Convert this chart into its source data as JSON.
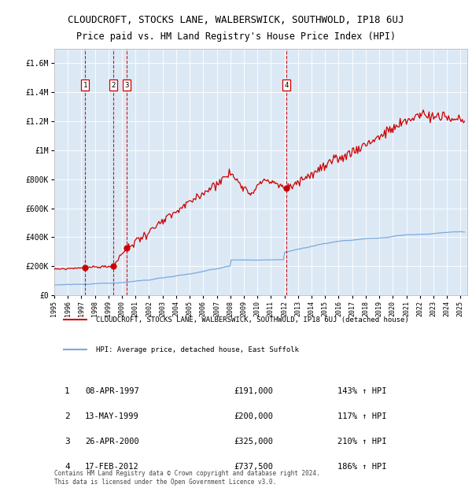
{
  "title": "CLOUDCROFT, STOCKS LANE, WALBERSWICK, SOUTHWOLD, IP18 6UJ",
  "subtitle": "Price paid vs. HM Land Registry's House Price Index (HPI)",
  "title_fontsize": 9.0,
  "subtitle_fontsize": 8.5,
  "background_color": "#dce9f5",
  "plot_bg_color": "#dce9f5",
  "x_start": 1995.0,
  "x_end": 2025.5,
  "y_min": 0,
  "y_max": 1700000,
  "yticks": [
    0,
    200000,
    400000,
    600000,
    800000,
    1000000,
    1200000,
    1400000,
    1600000
  ],
  "ytick_labels": [
    "£0",
    "£200K",
    "£400K",
    "£600K",
    "£800K",
    "£1M",
    "£1.2M",
    "£1.4M",
    "£1.6M"
  ],
  "xticks": [
    1995,
    1996,
    1997,
    1998,
    1999,
    2000,
    2001,
    2002,
    2003,
    2004,
    2005,
    2006,
    2007,
    2008,
    2009,
    2010,
    2011,
    2012,
    2013,
    2014,
    2015,
    2016,
    2017,
    2018,
    2019,
    2020,
    2021,
    2022,
    2023,
    2024,
    2025
  ],
  "sales": [
    {
      "year": 1997.27,
      "price": 191000,
      "label": "1"
    },
    {
      "year": 1999.36,
      "price": 200000,
      "label": "2"
    },
    {
      "year": 2000.32,
      "price": 325000,
      "label": "3"
    },
    {
      "year": 2012.12,
      "price": 737500,
      "label": "4"
    }
  ],
  "sale_color": "#cc0000",
  "sale_dot_size": 35,
  "dashed_line_color": "#cc0000",
  "hpi_line_color": "#7aaadd",
  "legend_label_red": "CLOUDCROFT, STOCKS LANE, WALBERSWICK, SOUTHWOLD, IP18 6UJ (detached house)",
  "legend_label_blue": "HPI: Average price, detached house, East Suffolk",
  "table_entries": [
    {
      "num": "1",
      "date": "08-APR-1997",
      "price": "£191,000",
      "hpi": "143% ↑ HPI"
    },
    {
      "num": "2",
      "date": "13-MAY-1999",
      "price": "£200,000",
      "hpi": "117% ↑ HPI"
    },
    {
      "num": "3",
      "date": "26-APR-2000",
      "price": "£325,000",
      "hpi": "210% ↑ HPI"
    },
    {
      "num": "4",
      "date": "17-FEB-2012",
      "price": "£737,500",
      "hpi": "186% ↑ HPI"
    }
  ],
  "footnote": "Contains HM Land Registry data © Crown copyright and database right 2024.\nThis data is licensed under the Open Government Licence v3.0.",
  "red_line_seed": 42,
  "blue_line_seed": 99
}
